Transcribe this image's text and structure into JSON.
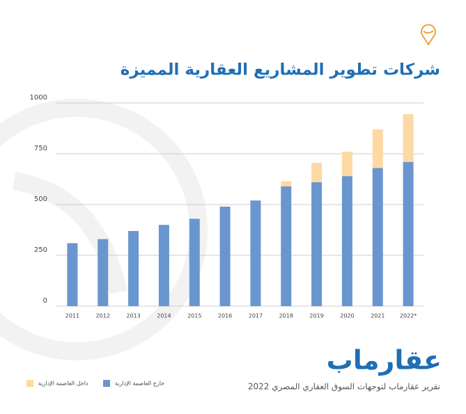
{
  "chart_data": {
    "type": "stacked-bar",
    "title": "شركات تطوير المشاريع العقارية المميزة",
    "brand": "عقارماب",
    "footer": "تقرير عقارماب لتوجهات السوق العقاري المصري 2022",
    "categories": [
      "2011",
      "2012",
      "2013",
      "2014",
      "2015",
      "2016",
      "2017",
      "2018",
      "2019",
      "2020",
      "2021",
      "2022*"
    ],
    "series": [
      {
        "name": "خارج العاصمة الإدارية",
        "color": "#6a96cf",
        "values": [
          310,
          330,
          370,
          400,
          430,
          490,
          520,
          590,
          610,
          640,
          680,
          710
        ]
      },
      {
        "name": "داخل العاصمة الإدارية",
        "color": "#fdd9a3",
        "values": [
          null,
          null,
          null,
          null,
          null,
          null,
          null,
          25,
          95,
          120,
          190,
          235
        ]
      }
    ],
    "ylim": [
      0,
      1000
    ],
    "yticks": [
      0,
      250,
      500,
      750,
      1000
    ],
    "grid": true
  }
}
